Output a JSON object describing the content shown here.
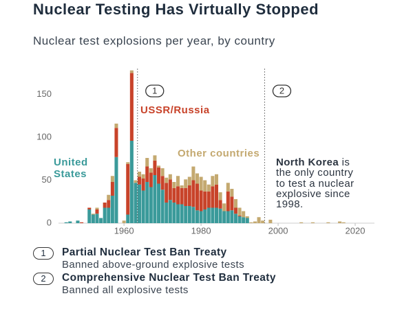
{
  "chart_data": {
    "type": "stacked-bar",
    "title": "Nuclear Testing Has Virtually Stopped",
    "subtitle": "Nuclear test explosions per year, by country",
    "x": [
      1945,
      1946,
      1948,
      1949,
      1951,
      1952,
      1953,
      1954,
      1955,
      1956,
      1957,
      1958,
      1960,
      1961,
      1962,
      1963,
      1964,
      1965,
      1966,
      1967,
      1968,
      1969,
      1970,
      1971,
      1972,
      1973,
      1974,
      1975,
      1976,
      1977,
      1978,
      1979,
      1980,
      1981,
      1982,
      1983,
      1984,
      1985,
      1986,
      1987,
      1988,
      1989,
      1990,
      1991,
      1992,
      1993,
      1994,
      1995,
      1996,
      1998,
      2006,
      2009,
      2013,
      2016,
      2017
    ],
    "series": [
      {
        "name": "United States",
        "color": "#3a9a9a",
        "values": [
          1,
          2,
          3,
          0,
          16,
          10,
          11,
          6,
          18,
          18,
          32,
          77,
          0,
          10,
          96,
          47,
          45,
          38,
          48,
          42,
          56,
          46,
          39,
          24,
          27,
          24,
          22,
          22,
          20,
          20,
          19,
          15,
          14,
          16,
          18,
          18,
          18,
          17,
          14,
          14,
          15,
          11,
          8,
          7,
          6,
          0,
          0,
          0,
          0,
          0,
          0,
          0,
          0,
          0,
          0
        ]
      },
      {
        "name": "USSR/Russia",
        "color": "#c8432a",
        "values": [
          0,
          0,
          0,
          1,
          2,
          0,
          5,
          0,
          6,
          9,
          16,
          34,
          0,
          59,
          79,
          0,
          9,
          14,
          18,
          17,
          17,
          19,
          16,
          23,
          24,
          17,
          21,
          19,
          21,
          24,
          31,
          31,
          24,
          21,
          19,
          25,
          27,
          10,
          0,
          23,
          16,
          7,
          1,
          0,
          0,
          0,
          0,
          0,
          0,
          0,
          0,
          0,
          0,
          0,
          0
        ]
      },
      {
        "name": "Other countries",
        "color": "#c4a970",
        "values": [
          0,
          0,
          0,
          0,
          0,
          1,
          2,
          0,
          0,
          6,
          7,
          5,
          3,
          2,
          3,
          3,
          6,
          5,
          10,
          5,
          6,
          2,
          9,
          6,
          6,
          7,
          12,
          3,
          10,
          10,
          16,
          12,
          16,
          13,
          8,
          12,
          12,
          9,
          9,
          10,
          9,
          10,
          9,
          7,
          2,
          1,
          2,
          7,
          3,
          4,
          1,
          1,
          1,
          2,
          1
        ]
      }
    ],
    "xlim": [
      1943,
      2025
    ],
    "xticks": [
      1960,
      1980,
      2000,
      2020
    ],
    "ylim": [
      0,
      180
    ],
    "yticks": [
      0,
      50,
      100,
      150
    ],
    "annotation": {
      "bold": "North Korea",
      "text": "is the only country to test a nuclear explosive since 1998."
    },
    "treaties": [
      {
        "year": 1963,
        "number": "1",
        "name": "Partial Nuclear Test Ban Treaty",
        "description": "Banned above-ground explosive tests"
      },
      {
        "year": 1996,
        "number": "2",
        "name": "Comprehensive Nuclear Test Ban Treaty",
        "description": "Banned all explosive tests"
      }
    ]
  }
}
